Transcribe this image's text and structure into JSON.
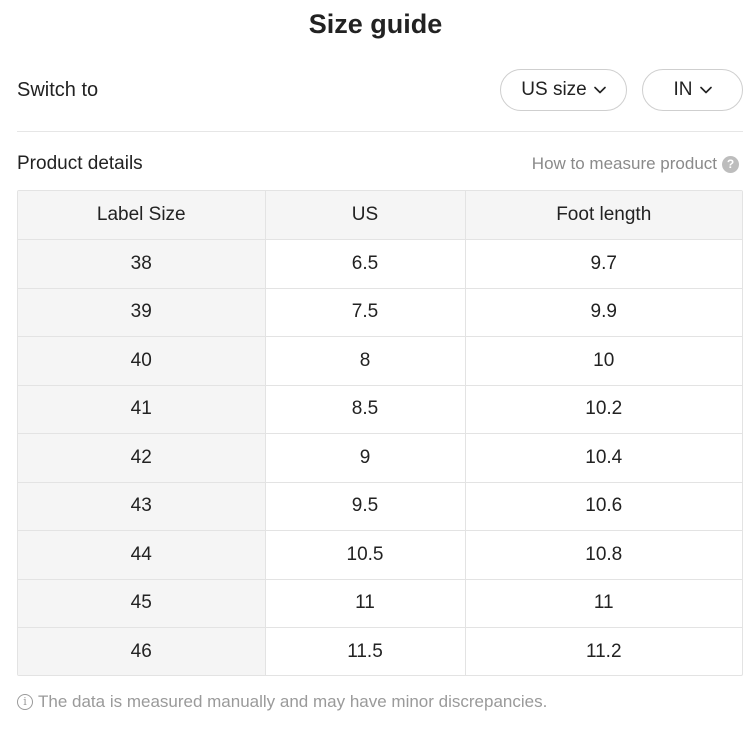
{
  "header": {
    "title": "Size guide"
  },
  "switch_row": {
    "label": "Switch to",
    "size_system": {
      "selected": "US size",
      "icon": "chevron-down-icon"
    },
    "unit": {
      "selected": "IN",
      "icon": "chevron-down-icon"
    }
  },
  "product_details": {
    "title": "Product details",
    "how_to_measure": "How to measure product",
    "help_icon": "question-circle-icon"
  },
  "size_table": {
    "headers": [
      "Label Size",
      "US",
      "Foot length"
    ],
    "rows": [
      [
        "38",
        "6.5",
        "9.7"
      ],
      [
        "39",
        "7.5",
        "9.9"
      ],
      [
        "40",
        "8",
        "10"
      ],
      [
        "41",
        "8.5",
        "10.2"
      ],
      [
        "42",
        "9",
        "10.4"
      ],
      [
        "43",
        "9.5",
        "10.6"
      ],
      [
        "44",
        "10.5",
        "10.8"
      ],
      [
        "45",
        "11",
        "11"
      ],
      [
        "46",
        "11.5",
        "11.2"
      ]
    ]
  },
  "footnote": {
    "icon": "info-circle-icon",
    "text": "The data is measured manually and may have minor discrepancies."
  },
  "colors": {
    "text": "#222222",
    "muted": "#8a8a8a",
    "header_bg": "#f5f5f5",
    "border": "#e3e3e3"
  }
}
